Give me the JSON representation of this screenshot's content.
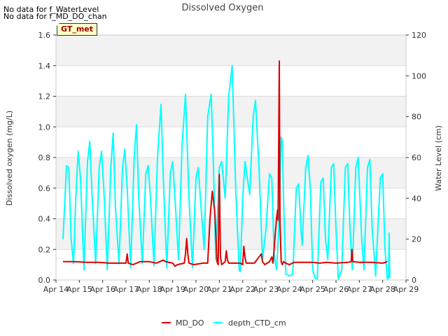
{
  "no_data_messages": [
    "No data for f_WaterLevel",
    "No data for f_MD_DO_chan"
  ],
  "badge": "GT_met",
  "chart_data": {
    "type": "line",
    "title": "Dissolved Oxygen",
    "xlabel": "",
    "ylabel": "Dissolved oxygen (mg/L)",
    "y2label": "Water Level (cm)",
    "xlim": [
      14,
      29
    ],
    "ylim": [
      0,
      1.6
    ],
    "y2lim": [
      0,
      120
    ],
    "x_ticks": [
      {
        "x": 14,
        "label": "Apr 14"
      },
      {
        "x": 15,
        "label": "Apr 15"
      },
      {
        "x": 16,
        "label": "Apr 16"
      },
      {
        "x": 17,
        "label": "Apr 17"
      },
      {
        "x": 18,
        "label": "Apr 18"
      },
      {
        "x": 19,
        "label": "Apr 19"
      },
      {
        "x": 20,
        "label": "Apr 20"
      },
      {
        "x": 21,
        "label": "Apr 21"
      },
      {
        "x": 22,
        "label": "Apr 22"
      },
      {
        "x": 23,
        "label": "Apr 23"
      },
      {
        "x": 24,
        "label": "Apr 24"
      },
      {
        "x": 25,
        "label": "Apr 25"
      },
      {
        "x": 26,
        "label": "Apr 26"
      },
      {
        "x": 27,
        "label": "Apr 27"
      },
      {
        "x": 28,
        "label": "Apr 28"
      },
      {
        "x": 29,
        "label": "Apr 29"
      }
    ],
    "y_ticks": [
      0.0,
      0.2,
      0.4,
      0.6,
      0.8,
      1.0,
      1.2,
      1.4,
      1.6
    ],
    "y_tick_labels": [
      "0.0",
      "0.2",
      "0.4",
      "0.6",
      "0.8",
      "1.0",
      "1.2",
      "1.4",
      "1.6"
    ],
    "y2_ticks": [
      0,
      20,
      40,
      60,
      80,
      100,
      120
    ],
    "y2_tick_labels": [
      "0",
      "20",
      "40",
      "60",
      "80",
      "100",
      "120"
    ],
    "grid": true,
    "legend_position": "bottom-center",
    "series": [
      {
        "name": "MD_DO",
        "axis": "left",
        "color": "#dd0000",
        "points": [
          [
            14.3,
            0.12
          ],
          [
            14.8,
            0.12
          ],
          [
            15.3,
            0.115
          ],
          [
            15.8,
            0.115
          ],
          [
            16.3,
            0.11
          ],
          [
            16.8,
            0.11
          ],
          [
            17.0,
            0.11
          ],
          [
            17.05,
            0.17
          ],
          [
            17.1,
            0.11
          ],
          [
            17.3,
            0.1
          ],
          [
            17.6,
            0.12
          ],
          [
            18.0,
            0.12
          ],
          [
            18.3,
            0.11
          ],
          [
            18.6,
            0.13
          ],
          [
            18.7,
            0.12
          ],
          [
            19.0,
            0.11
          ],
          [
            19.1,
            0.09
          ],
          [
            19.2,
            0.1
          ],
          [
            19.5,
            0.11
          ],
          [
            19.55,
            0.17
          ],
          [
            19.6,
            0.27
          ],
          [
            19.65,
            0.17
          ],
          [
            19.7,
            0.11
          ],
          [
            19.9,
            0.1
          ],
          [
            20.3,
            0.11
          ],
          [
            20.5,
            0.11
          ],
          [
            20.6,
            0.4
          ],
          [
            20.7,
            0.58
          ],
          [
            20.8,
            0.45
          ],
          [
            20.85,
            0.3
          ],
          [
            20.9,
            0.12
          ],
          [
            20.95,
            0.1
          ],
          [
            21.0,
            0.69
          ],
          [
            21.05,
            0.15
          ],
          [
            21.1,
            0.1
          ],
          [
            21.25,
            0.12
          ],
          [
            21.3,
            0.19
          ],
          [
            21.35,
            0.13
          ],
          [
            21.4,
            0.11
          ],
          [
            21.9,
            0.11
          ],
          [
            22.0,
            0.1
          ],
          [
            22.05,
            0.22
          ],
          [
            22.1,
            0.15
          ],
          [
            22.15,
            0.11
          ],
          [
            22.5,
            0.11
          ],
          [
            22.8,
            0.17
          ],
          [
            22.85,
            0.12
          ],
          [
            22.95,
            0.1
          ],
          [
            23.15,
            0.12
          ],
          [
            23.25,
            0.15
          ],
          [
            23.3,
            0.11
          ],
          [
            23.45,
            0.4
          ],
          [
            23.5,
            0.46
          ],
          [
            23.52,
            0.39
          ],
          [
            23.57,
            1.43
          ],
          [
            23.6,
            0.38
          ],
          [
            23.65,
            0.12
          ],
          [
            23.7,
            0.1
          ],
          [
            23.75,
            0.12
          ],
          [
            23.85,
            0.11
          ],
          [
            24.0,
            0.1
          ],
          [
            24.2,
            0.115
          ],
          [
            24.5,
            0.115
          ],
          [
            25.0,
            0.115
          ],
          [
            25.3,
            0.11
          ],
          [
            25.6,
            0.115
          ],
          [
            26.0,
            0.11
          ],
          [
            26.5,
            0.115
          ],
          [
            26.65,
            0.12
          ],
          [
            26.68,
            0.2
          ],
          [
            26.72,
            0.12
          ],
          [
            27.0,
            0.115
          ],
          [
            27.5,
            0.115
          ],
          [
            28.0,
            0.11
          ],
          [
            28.2,
            0.12
          ]
        ]
      },
      {
        "name": "depth_CTD_cm",
        "axis": "right",
        "color": "#00ffff",
        "points": [
          [
            14.3,
            20
          ],
          [
            14.45,
            56
          ],
          [
            14.55,
            55
          ],
          [
            14.65,
            20
          ],
          [
            14.75,
            8
          ],
          [
            14.85,
            40
          ],
          [
            14.95,
            63
          ],
          [
            15.05,
            50
          ],
          [
            15.2,
            5
          ],
          [
            15.35,
            58
          ],
          [
            15.45,
            68
          ],
          [
            15.55,
            40
          ],
          [
            15.7,
            8
          ],
          [
            15.85,
            55
          ],
          [
            15.95,
            63
          ],
          [
            16.05,
            45
          ],
          [
            16.2,
            5
          ],
          [
            16.35,
            55
          ],
          [
            16.45,
            72
          ],
          [
            16.55,
            35
          ],
          [
            16.7,
            8
          ],
          [
            16.85,
            55
          ],
          [
            16.95,
            64
          ],
          [
            17.05,
            45
          ],
          [
            17.2,
            6
          ],
          [
            17.35,
            60
          ],
          [
            17.45,
            76
          ],
          [
            17.55,
            40
          ],
          [
            17.7,
            8
          ],
          [
            17.85,
            52
          ],
          [
            17.95,
            56
          ],
          [
            18.05,
            40
          ],
          [
            18.2,
            7
          ],
          [
            18.35,
            60
          ],
          [
            18.5,
            86
          ],
          [
            18.6,
            50
          ],
          [
            18.75,
            6
          ],
          [
            18.9,
            52
          ],
          [
            19.0,
            58
          ],
          [
            19.1,
            40
          ],
          [
            19.25,
            10
          ],
          [
            19.4,
            65
          ],
          [
            19.55,
            91
          ],
          [
            19.7,
            40
          ],
          [
            19.85,
            6
          ],
          [
            20.0,
            50
          ],
          [
            20.1,
            55
          ],
          [
            20.2,
            38
          ],
          [
            20.35,
            15
          ],
          [
            20.5,
            80
          ],
          [
            20.65,
            91
          ],
          [
            20.75,
            55
          ],
          [
            20.85,
            10
          ],
          [
            21.0,
            55
          ],
          [
            21.1,
            58
          ],
          [
            21.25,
            40
          ],
          [
            21.4,
            90
          ],
          [
            21.55,
            105
          ],
          [
            21.7,
            45
          ],
          [
            21.85,
            5
          ],
          [
            21.9,
            4
          ],
          [
            22.0,
            40
          ],
          [
            22.1,
            58
          ],
          [
            22.2,
            50
          ],
          [
            22.3,
            42
          ],
          [
            22.45,
            80
          ],
          [
            22.55,
            88
          ],
          [
            22.7,
            55
          ],
          [
            22.85,
            10
          ],
          [
            23.0,
            25
          ],
          [
            23.15,
            52
          ],
          [
            23.25,
            50
          ],
          [
            23.35,
            12
          ],
          [
            23.45,
            5
          ],
          [
            23.55,
            25
          ],
          [
            23.65,
            70
          ],
          [
            23.7,
            68
          ],
          [
            23.75,
            40
          ],
          [
            23.85,
            3
          ],
          [
            24.0,
            2
          ],
          [
            24.15,
            3
          ],
          [
            24.3,
            45
          ],
          [
            24.4,
            47
          ],
          [
            24.5,
            25
          ],
          [
            24.55,
            17
          ],
          [
            24.7,
            55
          ],
          [
            24.8,
            61
          ],
          [
            24.9,
            45
          ],
          [
            25.0,
            5
          ],
          [
            25.1,
            1
          ],
          [
            25.2,
            0.5
          ],
          [
            25.35,
            48
          ],
          [
            25.45,
            50
          ],
          [
            25.55,
            20
          ],
          [
            25.65,
            10
          ],
          [
            25.8,
            55
          ],
          [
            25.9,
            57
          ],
          [
            26.0,
            25
          ],
          [
            26.1,
            0.5
          ],
          [
            26.25,
            5
          ],
          [
            26.4,
            55
          ],
          [
            26.5,
            57
          ],
          [
            26.6,
            25
          ],
          [
            26.7,
            5
          ],
          [
            26.85,
            55
          ],
          [
            26.95,
            60
          ],
          [
            27.1,
            20
          ],
          [
            27.2,
            5
          ],
          [
            27.35,
            55
          ],
          [
            27.45,
            59
          ],
          [
            27.55,
            25
          ],
          [
            27.7,
            2
          ],
          [
            27.9,
            50
          ],
          [
            28.0,
            52
          ],
          [
            28.1,
            15
          ],
          [
            28.2,
            0.5
          ],
          [
            28.25,
            1
          ],
          [
            28.28,
            23
          ],
          [
            28.3,
            1
          ]
        ]
      }
    ]
  }
}
